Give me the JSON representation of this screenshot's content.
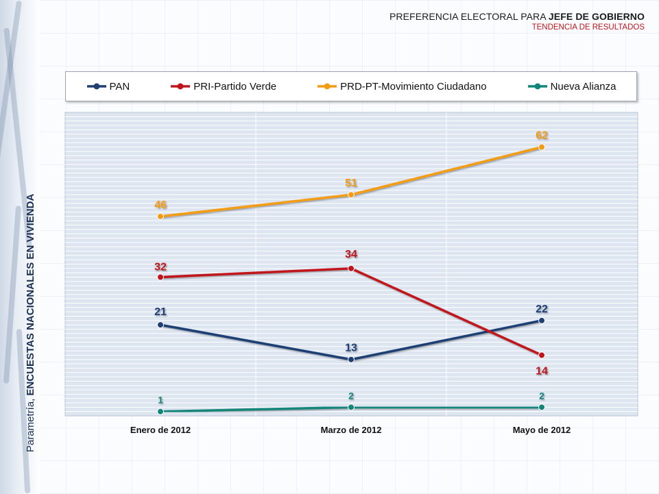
{
  "header": {
    "title_prefix": "PREFERENCIA ELECTORAL PARA ",
    "title_strong": "JEFE DE GOBIERNO",
    "subtitle": "TENDENCIA DE RESULTADOS"
  },
  "side_credit": {
    "prefix": "Parametría, ",
    "strong": "ENCUESTAS NACIONALES EN VIVIENDA"
  },
  "colors": {
    "plot_bg": "#dde5f1",
    "grid": "#ffffff"
  },
  "chart_data": {
    "type": "line",
    "categories": [
      "Enero de 2012",
      "Marzo de 2012",
      "Mayo de 2012"
    ],
    "ylim": [
      0,
      70
    ],
    "grid": true,
    "legend": "top",
    "series": [
      {
        "name": "PAN",
        "color": "#1f3f73",
        "values": [
          21,
          13,
          22
        ]
      },
      {
        "name": "PRI-Partido Verde",
        "color": "#c0141c",
        "values": [
          32,
          34,
          14
        ]
      },
      {
        "name": "PRD-PT-Movimiento Ciudadano",
        "color": "#f39c12",
        "values": [
          46,
          51,
          62
        ]
      },
      {
        "name": "Nueva Alianza",
        "color": "#12857a",
        "values": [
          1,
          2,
          2
        ]
      }
    ]
  }
}
